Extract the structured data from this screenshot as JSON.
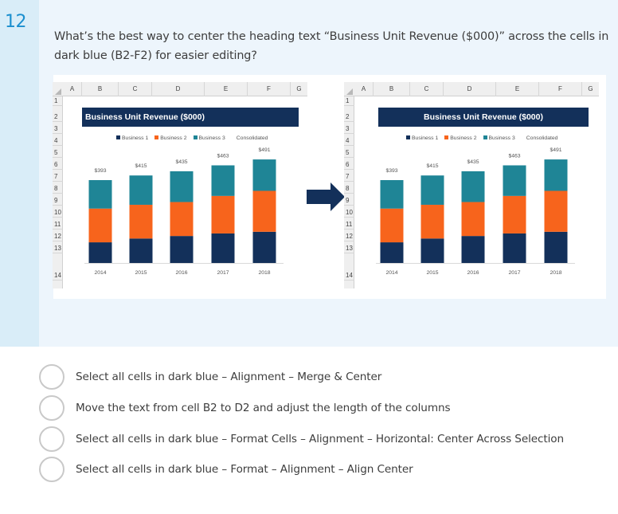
{
  "question": {
    "number": "12",
    "text": "What’s the best way to center the heading text “Business Unit Revenue ($000)” across the cells in dark blue (B2-F2) for easier editing?"
  },
  "spreadsheet": {
    "columns": [
      "A",
      "B",
      "C",
      "D",
      "E",
      "F",
      "G"
    ],
    "rows": [
      "1",
      "2",
      "3",
      "4",
      "5",
      "6",
      "7",
      "8",
      "9",
      "10",
      "11",
      "12",
      "13",
      "14"
    ],
    "heading_cell_text": "Business Unit Revenue ($000)",
    "before_alignment": "left",
    "after_alignment": "center",
    "arrow_icon": "right-arrow-icon"
  },
  "colors": {
    "heading_fill": "#13305a",
    "business_1": "#13305a",
    "business_2": "#f7641c",
    "business_3": "#1f8596",
    "accent_number": "#1b8fcf"
  },
  "chart_data": {
    "type": "bar",
    "stacked": true,
    "title": "Business Unit Revenue ($000)",
    "categories": [
      "2014",
      "2015",
      "2016",
      "2017",
      "2018"
    ],
    "series": [
      {
        "name": "Business 1",
        "values": [
          98,
          116,
          128,
          140,
          148
        ]
      },
      {
        "name": "Business 2",
        "values": [
          160,
          160,
          161,
          178,
          194
        ]
      },
      {
        "name": "Business 3",
        "values": [
          135,
          139,
          146,
          145,
          149
        ]
      }
    ],
    "totals_series": {
      "name": "Consolidated",
      "values": [
        393,
        415,
        435,
        463,
        491
      ]
    },
    "data_labels": [
      "$393",
      "$415",
      "$435",
      "$463",
      "$491"
    ],
    "legend": [
      "Business 1",
      "Business 2",
      "Business 3",
      "Consolidated"
    ],
    "legend_position": "top",
    "xlabel": "",
    "ylabel": "",
    "ylim": [
      0,
      520
    ],
    "grid": false
  },
  "answers": [
    {
      "id": "a",
      "label": "Select all cells in dark blue – Alignment – Merge & Center",
      "selected": false
    },
    {
      "id": "b",
      "label": "Move the text from cell B2 to D2 and adjust the length of the columns",
      "selected": false
    },
    {
      "id": "c",
      "label": "Select all cells in dark blue – Format Cells – Alignment – Horizontal: Center Across Selection",
      "selected": false
    },
    {
      "id": "d",
      "label": "Select all cells in dark blue – Format – Alignment – Align Center",
      "selected": false
    }
  ]
}
